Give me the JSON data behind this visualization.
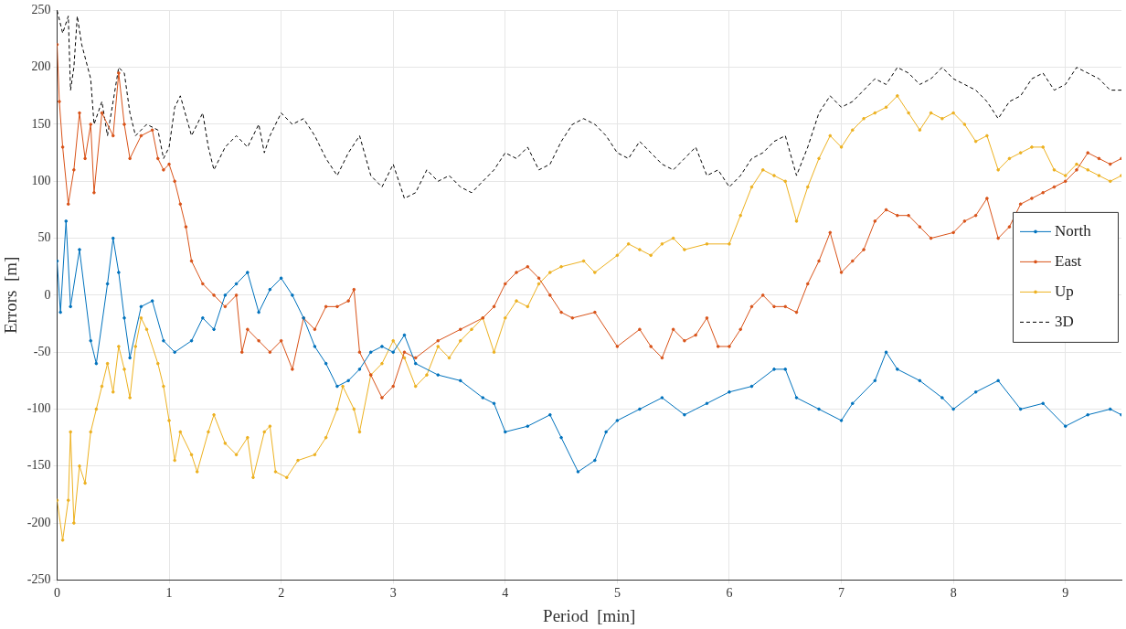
{
  "chart_data": {
    "type": "line",
    "xlabel": "Period  [min]",
    "ylabel": "Errors  [m]",
    "xlim": [
      0,
      9.5
    ],
    "ylim": [
      -250,
      250
    ],
    "xticks": [
      0,
      1,
      2,
      3,
      4,
      5,
      6,
      7,
      8,
      9
    ],
    "yticks": [
      -250,
      -200,
      -150,
      -100,
      -50,
      0,
      50,
      100,
      150,
      200,
      250
    ],
    "grid": true,
    "legend": "right",
    "series": [
      {
        "name": "North",
        "color": "#0072bd",
        "marker": "circle",
        "line_style": "solid",
        "x": [
          0,
          0.03,
          0.08,
          0.12,
          0.2,
          0.3,
          0.35,
          0.45,
          0.5,
          0.55,
          0.6,
          0.65,
          0.75,
          0.85,
          0.95,
          1.05,
          1.2,
          1.3,
          1.4,
          1.5,
          1.6,
          1.7,
          1.8,
          1.9,
          2.0,
          2.1,
          2.2,
          2.3,
          2.4,
          2.5,
          2.6,
          2.7,
          2.8,
          2.9,
          3.0,
          3.1,
          3.2,
          3.4,
          3.6,
          3.8,
          3.9,
          4.0,
          4.2,
          4.4,
          4.5,
          4.65,
          4.8,
          4.9,
          5.0,
          5.2,
          5.4,
          5.6,
          5.8,
          6.0,
          6.2,
          6.4,
          6.5,
          6.6,
          6.8,
          7.0,
          7.1,
          7.3,
          7.4,
          7.5,
          7.7,
          7.9,
          8.0,
          8.2,
          8.4,
          8.6,
          8.8,
          9.0,
          9.2,
          9.4,
          9.5
        ],
        "values": [
          30,
          -15,
          65,
          -10,
          40,
          -40,
          -60,
          10,
          50,
          20,
          -20,
          -55,
          -10,
          -5,
          -40,
          -50,
          -40,
          -20,
          -30,
          0,
          10,
          20,
          -15,
          5,
          15,
          0,
          -20,
          -45,
          -60,
          -80,
          -75,
          -65,
          -50,
          -45,
          -50,
          -35,
          -60,
          -70,
          -75,
          -90,
          -95,
          -120,
          -115,
          -105,
          -125,
          -155,
          -145,
          -120,
          -110,
          -100,
          -90,
          -105,
          -95,
          -85,
          -80,
          -65,
          -65,
          -90,
          -100,
          -110,
          -95,
          -75,
          -50,
          -65,
          -75,
          -90,
          -100,
          -85,
          -75,
          -100,
          -95,
          -115,
          -105,
          -100,
          -105
        ]
      },
      {
        "name": "East",
        "color": "#d95319",
        "marker": "circle",
        "line_style": "solid",
        "x": [
          0,
          0.02,
          0.05,
          0.1,
          0.15,
          0.2,
          0.25,
          0.3,
          0.33,
          0.4,
          0.5,
          0.55,
          0.6,
          0.65,
          0.75,
          0.85,
          0.9,
          0.95,
          1.0,
          1.05,
          1.1,
          1.15,
          1.2,
          1.3,
          1.4,
          1.5,
          1.6,
          1.65,
          1.7,
          1.8,
          1.9,
          2.0,
          2.1,
          2.2,
          2.3,
          2.4,
          2.5,
          2.6,
          2.65,
          2.7,
          2.8,
          2.9,
          3.0,
          3.1,
          3.2,
          3.4,
          3.6,
          3.8,
          3.9,
          4.0,
          4.1,
          4.2,
          4.3,
          4.4,
          4.5,
          4.6,
          4.8,
          5.0,
          5.2,
          5.3,
          5.4,
          5.5,
          5.6,
          5.7,
          5.8,
          5.9,
          6.0,
          6.1,
          6.2,
          6.3,
          6.4,
          6.5,
          6.6,
          6.7,
          6.8,
          6.9,
          7.0,
          7.1,
          7.2,
          7.3,
          7.4,
          7.5,
          7.6,
          7.7,
          7.8,
          8.0,
          8.1,
          8.2,
          8.3,
          8.4,
          8.5,
          8.6,
          8.7,
          8.8,
          8.9,
          9.0,
          9.1,
          9.2,
          9.3,
          9.4,
          9.5
        ],
        "values": [
          220,
          170,
          130,
          80,
          110,
          160,
          120,
          150,
          90,
          160,
          140,
          195,
          150,
          120,
          140,
          145,
          120,
          110,
          115,
          100,
          80,
          60,
          30,
          10,
          0,
          -10,
          0,
          -50,
          -30,
          -40,
          -50,
          -40,
          -65,
          -20,
          -30,
          -10,
          -10,
          -5,
          5,
          -50,
          -70,
          -90,
          -80,
          -50,
          -55,
          -40,
          -30,
          -20,
          -10,
          10,
          20,
          25,
          15,
          0,
          -15,
          -20,
          -15,
          -45,
          -30,
          -45,
          -55,
          -30,
          -40,
          -35,
          -20,
          -45,
          -45,
          -30,
          -10,
          0,
          -10,
          -10,
          -15,
          10,
          30,
          55,
          20,
          30,
          40,
          65,
          75,
          70,
          70,
          60,
          50,
          55,
          65,
          70,
          85,
          50,
          60,
          80,
          85,
          90,
          95,
          100,
          110,
          125,
          120,
          115,
          120
        ]
      },
      {
        "name": "Up",
        "color": "#edb120",
        "marker": "circle",
        "line_style": "solid",
        "x": [
          0,
          0.05,
          0.1,
          0.12,
          0.15,
          0.2,
          0.25,
          0.3,
          0.35,
          0.4,
          0.45,
          0.5,
          0.55,
          0.6,
          0.65,
          0.7,
          0.75,
          0.8,
          0.9,
          0.95,
          1.0,
          1.05,
          1.1,
          1.2,
          1.25,
          1.35,
          1.4,
          1.5,
          1.6,
          1.7,
          1.75,
          1.85,
          1.9,
          1.95,
          2.05,
          2.15,
          2.3,
          2.4,
          2.5,
          2.55,
          2.65,
          2.7,
          2.8,
          2.9,
          3.0,
          3.1,
          3.2,
          3.3,
          3.4,
          3.5,
          3.6,
          3.7,
          3.8,
          3.9,
          4.0,
          4.1,
          4.2,
          4.3,
          4.4,
          4.5,
          4.7,
          4.8,
          5.0,
          5.1,
          5.2,
          5.3,
          5.4,
          5.5,
          5.6,
          5.8,
          6.0,
          6.1,
          6.2,
          6.3,
          6.4,
          6.5,
          6.6,
          6.7,
          6.8,
          6.9,
          7.0,
          7.1,
          7.2,
          7.3,
          7.4,
          7.5,
          7.6,
          7.7,
          7.8,
          7.9,
          8.0,
          8.1,
          8.2,
          8.3,
          8.4,
          8.5,
          8.6,
          8.7,
          8.8,
          8.9,
          9.0,
          9.1,
          9.2,
          9.3,
          9.4,
          9.5
        ],
        "values": [
          -180,
          -215,
          -180,
          -120,
          -200,
          -150,
          -165,
          -120,
          -100,
          -80,
          -60,
          -85,
          -45,
          -65,
          -90,
          -45,
          -20,
          -30,
          -60,
          -80,
          -110,
          -145,
          -120,
          -140,
          -155,
          -120,
          -105,
          -130,
          -140,
          -125,
          -160,
          -120,
          -115,
          -155,
          -160,
          -145,
          -140,
          -125,
          -100,
          -80,
          -100,
          -120,
          -70,
          -60,
          -40,
          -55,
          -80,
          -70,
          -45,
          -55,
          -40,
          -30,
          -20,
          -50,
          -20,
          -5,
          -10,
          10,
          20,
          25,
          30,
          20,
          35,
          45,
          40,
          35,
          45,
          50,
          40,
          45,
          45,
          70,
          95,
          110,
          105,
          100,
          65,
          95,
          120,
          140,
          130,
          145,
          155,
          160,
          165,
          175,
          160,
          145,
          160,
          155,
          160,
          150,
          135,
          140,
          110,
          120,
          125,
          130,
          130,
          110,
          105,
          115,
          110,
          105,
          100,
          105
        ]
      },
      {
        "name": "3D",
        "color": "#000000",
        "marker": "none",
        "line_style": "dashed",
        "x": [
          0,
          0.05,
          0.1,
          0.12,
          0.15,
          0.18,
          0.22,
          0.3,
          0.33,
          0.4,
          0.45,
          0.5,
          0.55,
          0.6,
          0.65,
          0.7,
          0.8,
          0.9,
          0.95,
          1.0,
          1.05,
          1.1,
          1.2,
          1.3,
          1.35,
          1.4,
          1.5,
          1.6,
          1.7,
          1.8,
          1.85,
          1.9,
          2.0,
          2.1,
          2.2,
          2.3,
          2.4,
          2.5,
          2.6,
          2.7,
          2.8,
          2.9,
          3.0,
          3.1,
          3.2,
          3.3,
          3.4,
          3.5,
          3.6,
          3.7,
          3.8,
          3.9,
          4.0,
          4.1,
          4.2,
          4.3,
          4.4,
          4.5,
          4.6,
          4.7,
          4.8,
          4.9,
          5.0,
          5.1,
          5.2,
          5.3,
          5.4,
          5.5,
          5.6,
          5.7,
          5.8,
          5.9,
          6.0,
          6.1,
          6.2,
          6.3,
          6.4,
          6.5,
          6.6,
          6.7,
          6.8,
          6.9,
          7.0,
          7.1,
          7.2,
          7.3,
          7.4,
          7.5,
          7.6,
          7.7,
          7.8,
          7.9,
          8.0,
          8.1,
          8.2,
          8.3,
          8.4,
          8.5,
          8.6,
          8.7,
          8.8,
          8.9,
          9.0,
          9.1,
          9.2,
          9.3,
          9.4,
          9.5
        ],
        "values": [
          250,
          230,
          245,
          180,
          200,
          245,
          220,
          190,
          150,
          170,
          140,
          170,
          200,
          195,
          160,
          140,
          150,
          145,
          120,
          130,
          165,
          175,
          140,
          160,
          130,
          110,
          130,
          140,
          130,
          150,
          125,
          140,
          160,
          150,
          155,
          140,
          120,
          105,
          125,
          140,
          105,
          95,
          115,
          85,
          90,
          110,
          100,
          105,
          95,
          90,
          100,
          110,
          125,
          120,
          130,
          110,
          115,
          135,
          150,
          155,
          150,
          140,
          125,
          120,
          135,
          125,
          115,
          110,
          120,
          130,
          105,
          110,
          95,
          105,
          120,
          125,
          135,
          140,
          105,
          130,
          160,
          175,
          165,
          170,
          180,
          190,
          185,
          200,
          195,
          185,
          190,
          200,
          190,
          185,
          180,
          170,
          155,
          170,
          175,
          190,
          195,
          180,
          185,
          200,
          195,
          190,
          180,
          180
        ]
      }
    ]
  }
}
